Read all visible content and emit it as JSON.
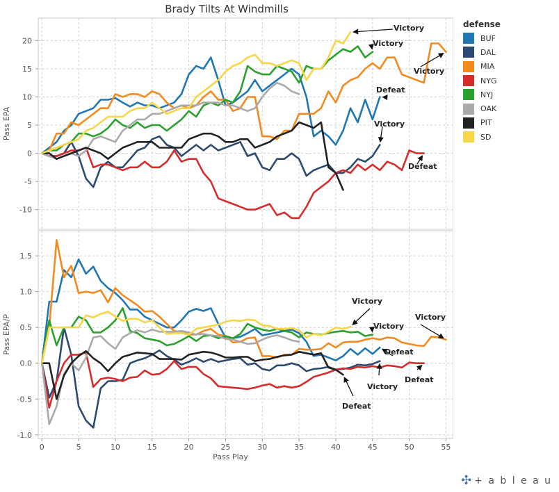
{
  "title": "Brady Tilts At Windmills",
  "x_axis_label": "Pass Play",
  "legend": {
    "title": "defense",
    "items": [
      {
        "label": "BUF",
        "color": "#1f77b4"
      },
      {
        "label": "DAL",
        "color": "#2c4a70"
      },
      {
        "label": "MIA",
        "color": "#f28a1e"
      },
      {
        "label": "NYG",
        "color": "#d62c2c"
      },
      {
        "label": "NYJ",
        "color": "#2ca02c"
      },
      {
        "label": "OAK",
        "color": "#aaaaaa"
      },
      {
        "label": "PIT",
        "color": "#222222"
      },
      {
        "label": "SD",
        "color": "#f7d64a"
      }
    ]
  },
  "logo": {
    "icon": "tableau-cross-icon",
    "text": "+ a b l e a u"
  },
  "chart_data": [
    {
      "type": "line",
      "ylabel": "Pass EPA",
      "xlabel": "Pass Play",
      "xlim": [
        -0.5,
        56
      ],
      "ylim": [
        -13.5,
        24
      ],
      "x_ticks": [
        0,
        5,
        10,
        15,
        20,
        25,
        30,
        35,
        40,
        45,
        50,
        55
      ],
      "y_ticks": [
        -10,
        -5,
        0,
        5,
        10,
        15,
        20
      ],
      "series": [
        {
          "name": "BUF",
          "values": [
            0,
            1,
            2,
            4,
            5,
            7,
            7.5,
            8,
            9.5,
            9.5,
            9.8,
            9,
            8.3,
            9,
            8.5,
            8.5,
            8,
            8.5,
            9,
            10.5,
            14,
            15.5,
            15,
            17,
            13,
            8.5,
            9,
            10,
            11,
            13,
            11,
            12,
            13,
            14,
            15,
            14,
            10,
            3,
            4,
            3,
            1.5,
            4,
            8,
            5.5,
            9.5,
            6,
            10
          ]
        },
        {
          "name": "DAL",
          "values": [
            0,
            -0.5,
            -0.5,
            0,
            2,
            -0.5,
            -4.5,
            -6,
            -2.5,
            -1.5,
            -2.5,
            -2.5,
            -1,
            0.5,
            1,
            2.5,
            3,
            1.5,
            1,
            -0.5,
            0.5,
            1.5,
            0.5,
            1.5,
            0.5,
            1,
            1.5,
            2,
            -0.5,
            0,
            -2.5,
            -3,
            -1,
            -1,
            0,
            -1,
            -4,
            -3,
            -2.5,
            -2,
            -3.5,
            -3.5,
            -2.5,
            -1,
            -1.5,
            -0.5,
            1.5
          ]
        },
        {
          "name": "MIA",
          "values": [
            0,
            0.5,
            3.5,
            3.5,
            5.5,
            5,
            6,
            7,
            8,
            8,
            10.5,
            10,
            10.5,
            10.5,
            10,
            11,
            10.5,
            9,
            8,
            8.5,
            8,
            8.5,
            10,
            11,
            9.5,
            9.5,
            7.5,
            8,
            10,
            10,
            3,
            3,
            2.5,
            4,
            4,
            7,
            7,
            7,
            8,
            11,
            9,
            12,
            13,
            13.5,
            15,
            16,
            15,
            17,
            17,
            14,
            13.5,
            13,
            12.5,
            19.5,
            19.5,
            18
          ]
        },
        {
          "name": "NYG",
          "values": [
            0,
            -0.5,
            -0.5,
            0,
            0.5,
            0.5,
            1,
            -2.5,
            -2,
            -2,
            -2.5,
            -3,
            -2.5,
            -2.5,
            -1.5,
            -2.5,
            -2.5,
            -1.5,
            0.5,
            -1.5,
            -1,
            -1,
            -3.5,
            -5,
            -8,
            -8.5,
            -9,
            -9.5,
            -10,
            -10,
            -9.5,
            -9,
            -11,
            -10.5,
            -11.5,
            -11.5,
            -9.5,
            -7,
            -6,
            -5,
            -3.5,
            -3,
            -3.5,
            -2,
            -3,
            -2,
            -3,
            -1.5,
            -2,
            -3,
            0.5,
            0,
            0
          ]
        },
        {
          "name": "NYJ",
          "values": [
            0,
            0.5,
            0.5,
            1.5,
            2,
            3.5,
            3.5,
            3,
            3.5,
            4.5,
            6,
            5,
            4.5,
            5.5,
            4.5,
            5,
            5,
            4,
            5,
            6,
            7.5,
            6.5,
            8.5,
            9,
            8.5,
            9.5,
            9,
            11,
            15.5,
            14.5,
            14,
            14,
            15.5,
            15,
            14.5,
            12.5,
            15.5,
            15,
            15,
            16.5,
            17.5,
            18.5,
            18,
            19,
            17,
            18
          ]
        },
        {
          "name": "OAK",
          "values": [
            0,
            -0.5,
            -1,
            -0.5,
            0,
            -0.5,
            0.5,
            2.5,
            3,
            2.5,
            2,
            4,
            5,
            6,
            6,
            7,
            7,
            7.5,
            8,
            8.5,
            8.5,
            8.5,
            9,
            9,
            9,
            8.5,
            8.5,
            8,
            7.5,
            8,
            10,
            11.5,
            12.5,
            12,
            11,
            10.5
          ]
        },
        {
          "name": "PIT",
          "values": [
            0,
            0,
            -1,
            -0.5,
            0,
            0.5,
            1,
            0.5,
            0,
            -1,
            0,
            1,
            1.5,
            2,
            2,
            2,
            1,
            1,
            1,
            1,
            2.5,
            3,
            3.5,
            3.5,
            3,
            2,
            2,
            2.5,
            2.5,
            1,
            1.5,
            2,
            3,
            3.5,
            4,
            5.5,
            5,
            4.5,
            5.5,
            -2.5,
            -3.5,
            -6.5
          ]
        },
        {
          "name": "SD",
          "values": [
            0,
            0.5,
            1,
            1.5,
            2,
            2.5,
            4,
            4.5,
            5.5,
            6.5,
            6.5,
            6.5,
            7.5,
            8,
            8,
            9,
            8,
            7,
            7.5,
            8,
            8,
            10,
            11,
            12,
            13,
            14.5,
            15.5,
            16,
            17,
            17.5,
            16,
            16,
            15.5,
            16,
            16.5,
            16,
            13,
            15,
            15,
            17,
            20,
            19.5,
            21.5
          ]
        }
      ],
      "annotations": [
        {
          "text": "Victory",
          "series": "SD"
        },
        {
          "text": "Victory",
          "series": "NYJ"
        },
        {
          "text": "Victory",
          "series": "MIA"
        },
        {
          "text": "Defeat",
          "series": "BUF"
        },
        {
          "text": "Victory",
          "series": "DAL"
        },
        {
          "text": "Defeat",
          "series": "NYG"
        }
      ]
    },
    {
      "type": "line",
      "ylabel": "Pass EPA/P",
      "xlabel": "Pass Play",
      "xlim": [
        -0.5,
        56
      ],
      "ylim": [
        -1.05,
        1.85
      ],
      "x_ticks": [
        0,
        5,
        10,
        15,
        20,
        25,
        30,
        35,
        40,
        45,
        50,
        55
      ],
      "y_ticks": [
        -1.0,
        -0.5,
        0.0,
        0.5,
        1.0,
        1.5
      ],
      "series": [
        {
          "name": "BUF",
          "values": [
            0,
            0.86,
            0.86,
            1.3,
            1.2,
            1.45,
            1.25,
            1.35,
            1.15,
            1.05,
            0.98,
            0.88,
            0.75,
            0.75,
            0.65,
            0.6,
            0.55,
            0.5,
            0.5,
            0.6,
            0.72,
            0.76,
            0.73,
            0.77,
            0.55,
            0.36,
            0.35,
            0.37,
            0.42,
            0.48,
            0.39,
            0.41,
            0.43,
            0.45,
            0.47,
            0.42,
            0.3,
            0.1,
            0.12,
            0.08,
            0.04,
            0.1,
            0.2,
            0.12,
            0.21,
            0.13,
            0.22
          ]
        },
        {
          "name": "DAL",
          "values": [
            0,
            -0.48,
            -0.25,
            0.5,
            0.12,
            -0.6,
            -0.8,
            -0.9,
            -0.35,
            -0.25,
            -0.25,
            -0.23,
            0,
            0.04,
            0.07,
            0.12,
            0.18,
            0.1,
            0.05,
            -0.02,
            0.02,
            0.07,
            0.02,
            0.06,
            0.02,
            0.04,
            0.06,
            0.07,
            -0.02,
            0,
            -0.08,
            -0.1,
            -0.03,
            -0.03,
            0,
            -0.03,
            -0.11,
            -0.08,
            -0.07,
            -0.05,
            -0.09,
            -0.08,
            -0.06,
            -0.02,
            -0.03,
            -0.01,
            0.03
          ]
        },
        {
          "name": "MIA",
          "values": [
            0,
            0.5,
            1.72,
            1.2,
            1.36,
            0.98,
            1.0,
            0.98,
            1.02,
            0.85,
            1.05,
            0.95,
            0.88,
            0.81,
            0.72,
            0.73,
            0.65,
            0.55,
            0.45,
            0.44,
            0.4,
            0.4,
            0.45,
            0.48,
            0.4,
            0.38,
            0.29,
            0.3,
            0.35,
            0.36,
            0.1,
            0.1,
            0.08,
            0.12,
            0.12,
            0.2,
            0.19,
            0.19,
            0.2,
            0.28,
            0.22,
            0.29,
            0.3,
            0.3,
            0.33,
            0.35,
            0.33,
            0.36,
            0.35,
            0.29,
            0.27,
            0.25,
            0.24,
            0.37,
            0.36,
            0.33
          ]
        },
        {
          "name": "NYG",
          "values": [
            0,
            -0.62,
            -0.25,
            0,
            0.12,
            0.12,
            0.15,
            -0.33,
            -0.22,
            -0.2,
            -0.22,
            -0.25,
            -0.2,
            -0.19,
            -0.1,
            -0.16,
            -0.15,
            -0.08,
            0.03,
            -0.08,
            -0.05,
            -0.05,
            -0.15,
            -0.21,
            -0.32,
            -0.33,
            -0.34,
            -0.35,
            -0.36,
            -0.34,
            -0.31,
            -0.29,
            -0.34,
            -0.32,
            -0.34,
            -0.32,
            -0.26,
            -0.19,
            -0.16,
            -0.13,
            -0.09,
            -0.07,
            -0.08,
            -0.05,
            -0.06,
            -0.04,
            -0.06,
            -0.03,
            -0.04,
            -0.06,
            0.01,
            0,
            0
          ]
        },
        {
          "name": "NYJ",
          "values": [
            0,
            0.6,
            0.25,
            0.5,
            0.5,
            0.65,
            0.6,
            0.43,
            0.43,
            0.5,
            0.6,
            0.77,
            0.45,
            0.42,
            0.35,
            0.33,
            0.31,
            0.25,
            0.27,
            0.32,
            0.38,
            0.31,
            0.38,
            0.39,
            0.35,
            0.38,
            0.35,
            0.41,
            0.55,
            0.5,
            0.47,
            0.45,
            0.48,
            0.45,
            0.43,
            0.36,
            0.43,
            0.41,
            0.4,
            0.42,
            0.44,
            0.45,
            0.43,
            0.44,
            0.38,
            0.4
          ]
        },
        {
          "name": "OAK",
          "values": [
            0,
            -0.85,
            -0.6,
            -0.15,
            0,
            -0.1,
            0.08,
            0.36,
            0.38,
            0.28,
            0.2,
            0.36,
            0.42,
            0.46,
            0.43,
            0.47,
            0.44,
            0.44,
            0.44,
            0.45,
            0.43,
            0.4,
            0.41,
            0.39,
            0.38,
            0.34,
            0.33,
            0.3,
            0.27,
            0.28,
            0.33,
            0.37,
            0.39,
            0.36,
            0.32,
            0.3
          ]
        },
        {
          "name": "PIT",
          "values": [
            0,
            0,
            -0.5,
            -0.17,
            0,
            0.1,
            0.17,
            0.07,
            0,
            -0.11,
            0,
            0.09,
            0.12,
            0.15,
            0.14,
            0.13,
            0.06,
            0.06,
            0.06,
            0.05,
            0.12,
            0.14,
            0.16,
            0.15,
            0.12,
            0.08,
            0.08,
            0.09,
            0.09,
            0.03,
            0.05,
            0.06,
            0.09,
            0.11,
            0.12,
            0.16,
            0.14,
            0.12,
            0.14,
            -0.06,
            -0.09,
            -0.16
          ]
        },
        {
          "name": "SD",
          "values": [
            0,
            0.5,
            0.5,
            0.5,
            0.5,
            0.5,
            0.67,
            0.64,
            0.69,
            0.72,
            0.65,
            0.59,
            0.62,
            0.62,
            0.57,
            0.6,
            0.5,
            0.41,
            0.42,
            0.42,
            0.4,
            0.48,
            0.5,
            0.52,
            0.54,
            0.58,
            0.6,
            0.59,
            0.61,
            0.6,
            0.53,
            0.52,
            0.48,
            0.48,
            0.49,
            0.46,
            0.36,
            0.41,
            0.39,
            0.44,
            0.5,
            0.48,
            0.51
          ]
        }
      ],
      "annotations": [
        {
          "text": "Victory",
          "series": "SD"
        },
        {
          "text": "Victory",
          "series": "NYJ"
        },
        {
          "text": "Victory",
          "series": "MIA"
        },
        {
          "text": "Defeat",
          "series": "BUF"
        },
        {
          "text": "Defeat",
          "series": "NYG"
        },
        {
          "text": "Victory",
          "series": "DAL"
        },
        {
          "text": "Defeat",
          "series": "PIT"
        }
      ]
    }
  ]
}
